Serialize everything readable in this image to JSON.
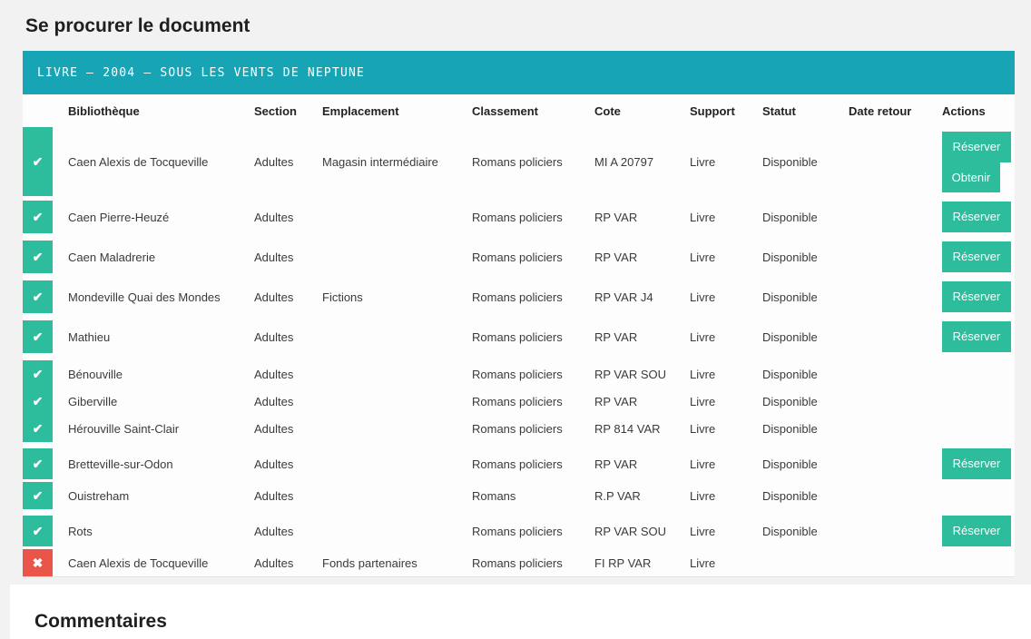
{
  "header": {
    "title": "Se procurer le document"
  },
  "banner": {
    "text": "LIVRE – 2004 – SOUS LES VENTS DE NEPTUNE"
  },
  "holdings_table": {
    "columns": [
      "Bibliothèque",
      "Section",
      "Emplacement",
      "Classement",
      "Cote",
      "Support",
      "Statut",
      "Date retour",
      "Actions"
    ],
    "rows": [
      {
        "available": true,
        "library": "Caen Alexis de Tocqueville",
        "section": "Adultes",
        "location": "Magasin intermédiaire",
        "classification": "Romans policiers",
        "call_number": "MI A 20797",
        "support": "Livre",
        "status": "Disponible",
        "return_date": "",
        "actions": [
          "Réserver",
          "Obtenir"
        ]
      },
      {
        "available": true,
        "library": "Caen Pierre-Heuzé",
        "section": "Adultes",
        "location": "",
        "classification": "Romans policiers",
        "call_number": "RP VAR",
        "support": "Livre",
        "status": "Disponible",
        "return_date": "",
        "actions": [
          "Réserver"
        ]
      },
      {
        "available": true,
        "library": "Caen Maladrerie",
        "section": "Adultes",
        "location": "",
        "classification": "Romans policiers",
        "call_number": "RP VAR",
        "support": "Livre",
        "status": "Disponible",
        "return_date": "",
        "actions": [
          "Réserver"
        ]
      },
      {
        "available": true,
        "library": "Mondeville Quai des Mondes",
        "section": "Adultes",
        "location": "Fictions",
        "classification": "Romans policiers",
        "call_number": "RP VAR J4",
        "support": "Livre",
        "status": "Disponible",
        "return_date": "",
        "actions": [
          "Réserver"
        ]
      },
      {
        "available": true,
        "library": "Mathieu",
        "section": "Adultes",
        "location": "",
        "classification": "Romans policiers",
        "call_number": "RP VAR",
        "support": "Livre",
        "status": "Disponible",
        "return_date": "",
        "actions": [
          "Réserver"
        ]
      },
      {
        "available": true,
        "library": "Bénouville",
        "section": "Adultes",
        "location": "",
        "classification": "Romans policiers",
        "call_number": "RP VAR SOU",
        "support": "Livre",
        "status": "Disponible",
        "return_date": "",
        "actions": []
      },
      {
        "available": true,
        "library": "Giberville",
        "section": "Adultes",
        "location": "",
        "classification": "Romans policiers",
        "call_number": "RP VAR",
        "support": "Livre",
        "status": "Disponible",
        "return_date": "",
        "actions": []
      },
      {
        "available": true,
        "library": "Hérouville Saint-Clair",
        "section": "Adultes",
        "location": "",
        "classification": "Romans policiers",
        "call_number": "RP 814 VAR",
        "support": "Livre",
        "status": "Disponible",
        "return_date": "",
        "actions": []
      },
      {
        "available": true,
        "library": "Bretteville-sur-Odon",
        "section": "Adultes",
        "location": "",
        "classification": "Romans policiers",
        "call_number": "RP VAR",
        "support": "Livre",
        "status": "Disponible",
        "return_date": "",
        "actions": [
          "Réserver"
        ]
      },
      {
        "available": true,
        "library": "Ouistreham",
        "section": "Adultes",
        "location": "",
        "classification": "Romans",
        "call_number": "R.P VAR",
        "support": "Livre",
        "status": "Disponible",
        "return_date": "",
        "actions": []
      },
      {
        "available": true,
        "library": "Rots",
        "section": "Adultes",
        "location": "",
        "classification": "Romans policiers",
        "call_number": "RP VAR SOU",
        "support": "Livre",
        "status": "Disponible",
        "return_date": "",
        "actions": [
          "Réserver"
        ]
      },
      {
        "available": false,
        "library": "Caen Alexis de Tocqueville",
        "section": "Adultes",
        "location": "Fonds partenaires",
        "classification": "Romans policiers",
        "call_number": "FI RP VAR",
        "support": "Livre",
        "status": "",
        "return_date": "",
        "actions": []
      }
    ]
  },
  "next_section": {
    "partial_title": "Commentaires"
  },
  "icons": {
    "available": "check-icon",
    "available_glyph": "✔",
    "unavailable": "x-icon",
    "unavailable_glyph": "✖"
  },
  "colors": {
    "teal": "#17a5b5",
    "green": "#2dbc9c",
    "red": "#ea5549"
  }
}
